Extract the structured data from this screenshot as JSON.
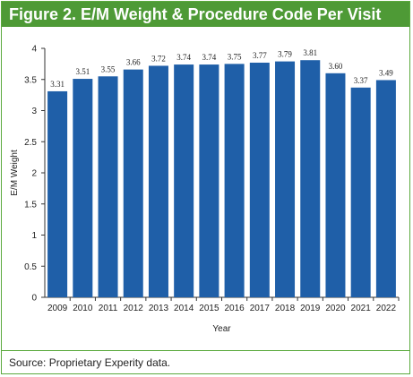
{
  "title": "Figure 2. E/M Weight & Procedure Code Per Visit",
  "source": "Source: Proprietary Experity data.",
  "colors": {
    "bar": "#1f5fa8",
    "header": "#4e9a36",
    "border": "#5aa93c"
  },
  "chart_data": {
    "type": "bar",
    "categories": [
      "2009",
      "2010",
      "2011",
      "2012",
      "2013",
      "2014",
      "2015",
      "2016",
      "2017",
      "2018",
      "2019",
      "2020",
      "2021",
      "2022"
    ],
    "values": [
      3.31,
      3.51,
      3.55,
      3.66,
      3.72,
      3.74,
      3.74,
      3.75,
      3.77,
      3.79,
      3.81,
      3.6,
      3.37,
      3.49
    ],
    "data_labels": [
      "3.31",
      "3.51",
      "3.55",
      "3.66",
      "3.72",
      "3.74",
      "3.74",
      "3.75",
      "3.77",
      "3.79",
      "3.81",
      "3.60",
      "3.37",
      "3.49"
    ],
    "xlabel": "Year",
    "ylabel": "E/M Weight",
    "ylim": [
      0,
      4
    ],
    "yticks": [
      "0",
      "0.5",
      "1",
      "1.5",
      "2",
      "2.5",
      "3",
      "3.5",
      "4"
    ],
    "grid": false
  }
}
